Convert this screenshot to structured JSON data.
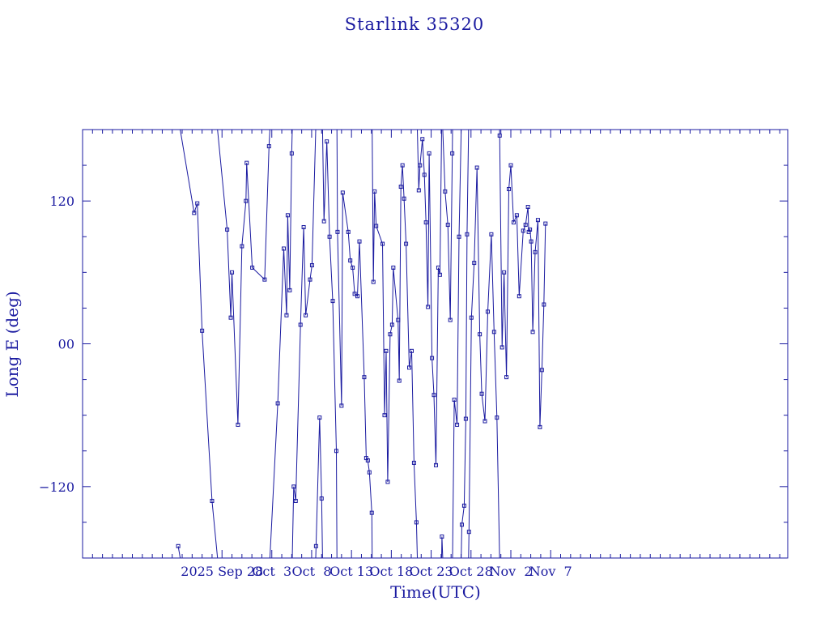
{
  "chart_data": {
    "type": "scatter",
    "title": "Starlink 35320",
    "xlabel": "Time(UTC)",
    "ylabel": "Long E (deg)",
    "x_unit": "days",
    "xlim": [
      -3.5,
      14.2
    ],
    "ylim": [
      -180,
      180
    ],
    "x_ticks": [
      {
        "value": 0,
        "label": "2025 Sep 28"
      },
      {
        "value": 1.25,
        "label": "Oct  3"
      },
      {
        "value": 2.25,
        "label": "Oct  8"
      },
      {
        "value": 3.25,
        "label": "Oct 13"
      },
      {
        "value": 4.25,
        "label": "Oct 18"
      },
      {
        "value": 5.25,
        "label": "Oct 23"
      },
      {
        "value": 6.25,
        "label": "Oct 28"
      },
      {
        "value": 7.25,
        "label": "Nov  2"
      },
      {
        "value": 8.25,
        "label": "Nov  7"
      }
    ],
    "y_ticks": [
      {
        "value": -120,
        "label": "−120"
      },
      {
        "value": 0,
        "label": "00"
      },
      {
        "value": 120,
        "label": "120"
      }
    ],
    "grid": false,
    "connect_points": true,
    "wrap_longitude": true,
    "series": [
      {
        "color": "#1a1aa0",
        "x": [
          -1.1,
          -0.7,
          -0.62,
          -0.5,
          -0.25,
          0.13,
          0.22,
          0.25,
          0.4,
          0.5,
          0.6,
          0.62,
          0.76,
          1.07,
          1.18,
          1.4,
          1.55,
          1.62,
          1.65,
          1.7,
          1.75,
          1.8,
          1.85,
          1.97,
          2.05,
          2.1,
          2.21,
          2.26,
          2.36,
          2.45,
          2.5,
          2.56,
          2.63,
          2.7,
          2.78,
          2.87,
          2.9,
          3.0,
          3.03,
          3.17,
          3.22,
          3.28,
          3.33,
          3.4,
          3.45,
          3.57,
          3.62,
          3.66,
          3.7,
          3.76,
          3.8,
          3.83,
          3.87,
          4.03,
          4.08,
          4.12,
          4.16,
          4.22,
          4.27,
          4.3,
          4.42,
          4.45,
          4.49,
          4.53,
          4.57,
          4.62,
          4.7,
          4.76,
          4.82,
          4.88,
          4.94,
          4.97,
          5.03,
          5.08,
          5.12,
          5.17,
          5.2,
          5.27,
          5.32,
          5.37,
          5.43,
          5.47,
          5.52,
          5.6,
          5.67,
          5.73,
          5.78,
          5.83,
          5.9,
          5.95,
          6.02,
          6.08,
          6.12,
          6.15,
          6.2,
          6.26,
          6.33,
          6.4,
          6.47,
          6.52,
          6.6,
          6.67,
          6.76,
          6.83,
          6.9,
          6.97,
          7.03,
          7.08,
          7.14,
          7.2,
          7.25,
          7.32,
          7.4,
          7.46,
          7.56,
          7.62,
          7.68,
          7.7,
          7.73,
          7.76,
          7.8,
          7.86,
          7.93,
          7.98,
          8.03,
          8.08,
          8.12
        ],
        "y": [
          -170,
          110,
          118,
          11,
          -132,
          96,
          22,
          60,
          -68,
          82,
          120,
          152,
          64,
          54,
          166,
          -50,
          80,
          24,
          108,
          45,
          160,
          -120,
          -132,
          16,
          98,
          24,
          54,
          66,
          -170,
          -62,
          -130,
          103,
          170,
          90,
          36,
          -90,
          94,
          -52,
          127,
          94,
          70,
          64,
          42,
          40,
          86,
          -28,
          -96,
          -98,
          -108,
          -142,
          52,
          128,
          99,
          84,
          -60,
          -6,
          -116,
          8,
          16,
          64,
          20,
          -31,
          132,
          150,
          122,
          84,
          -20,
          -6,
          -100,
          -150,
          129,
          150,
          172,
          142,
          102,
          31,
          160,
          -12,
          -43,
          -102,
          64,
          58,
          -162,
          128,
          100,
          20,
          160,
          -47,
          -68,
          90,
          -152,
          -136,
          -63,
          92,
          -158,
          22,
          68,
          148,
          8,
          -42,
          -65,
          27,
          92,
          10,
          -62,
          175,
          -3,
          60,
          -28,
          130,
          150,
          102,
          108,
          40,
          95,
          100,
          115,
          94,
          96,
          86,
          10,
          77,
          104,
          -70,
          -22,
          33,
          101
        ]
      }
    ]
  }
}
